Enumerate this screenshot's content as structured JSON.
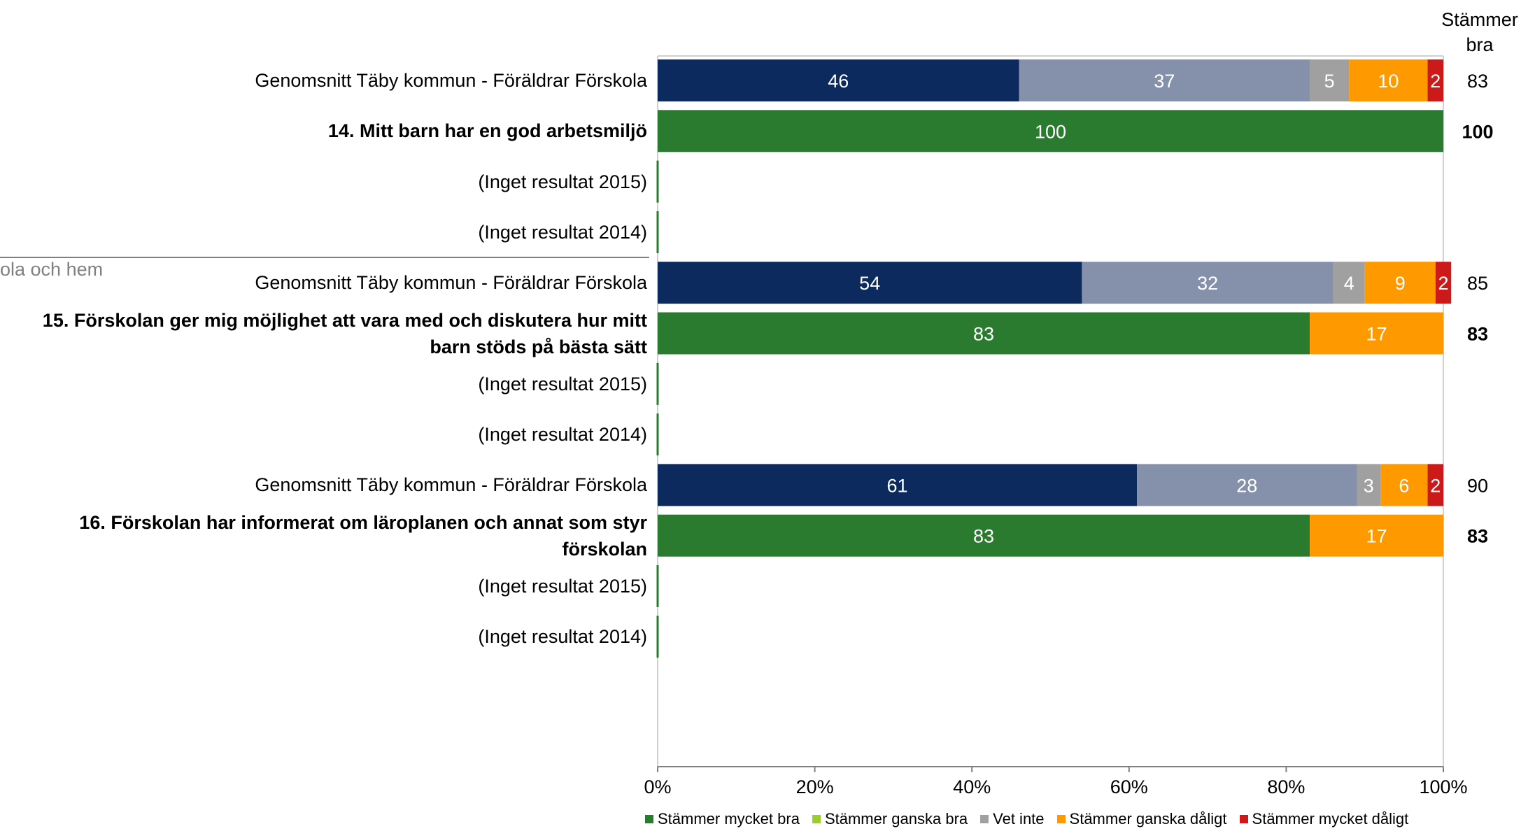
{
  "chart_data": {
    "type": "bar",
    "orientation": "horizontal-stacked-percent",
    "xlim": [
      0,
      100
    ],
    "x_ticks": [
      "0%",
      "20%",
      "40%",
      "60%",
      "80%",
      "100%"
    ],
    "right_column_header": "Stämmer bra",
    "section_label": "ola och hem",
    "legend": [
      {
        "name": "Stämmer mycket bra",
        "color": "#2a7a2f"
      },
      {
        "name": "Stämmer ganska bra",
        "color": "#9acd32"
      },
      {
        "name": "Vet inte",
        "color": "#a0a0a0"
      },
      {
        "name": "Stämmer ganska dåligt",
        "color": "#ff9900"
      },
      {
        "name": "Stämmer mycket dåligt",
        "color": "#cc1a1a"
      }
    ],
    "rows": [
      {
        "label": "Genomsnitt Täby kommun - Föräldrar Förskola",
        "bold": false,
        "kind": "avg",
        "segments": [
          {
            "value": 46,
            "label": "46",
            "color": "#0d2a5e"
          },
          {
            "value": 37,
            "label": "37",
            "color": "#8590aa"
          },
          {
            "value": 5,
            "label": "5",
            "color": "#a0a0a0"
          },
          {
            "value": 10,
            "label": "10",
            "color": "#ff9900"
          },
          {
            "value": 2,
            "label": "2",
            "color": "#cc1a1a"
          }
        ],
        "right_value": "83"
      },
      {
        "label": "14. Mitt barn har en god arbetsmiljö",
        "bold": true,
        "kind": "school",
        "segments": [
          {
            "value": 100,
            "label": "100",
            "color": "#2a7a2f"
          },
          {
            "value": 0,
            "label": "0",
            "color": "#9acd32"
          }
        ],
        "right_value": "100"
      },
      {
        "label": "(Inget resultat 2015)",
        "bold": false,
        "kind": "empty",
        "segments": [],
        "right_value": ""
      },
      {
        "label": "(Inget resultat 2014)",
        "bold": false,
        "kind": "empty",
        "segments": [],
        "right_value": ""
      },
      {
        "label": "Genomsnitt Täby kommun - Föräldrar Förskola",
        "bold": false,
        "kind": "avg",
        "segments": [
          {
            "value": 54,
            "label": "54",
            "color": "#0d2a5e"
          },
          {
            "value": 32,
            "label": "32",
            "color": "#8590aa"
          },
          {
            "value": 4,
            "label": "4",
            "color": "#a0a0a0"
          },
          {
            "value": 9,
            "label": "9",
            "color": "#ff9900"
          },
          {
            "value": 2,
            "label": "2",
            "color": "#cc1a1a"
          }
        ],
        "right_value": "85"
      },
      {
        "label": "15. Förskolan ger mig möjlighet att vara med och diskutera hur mitt",
        "label2": "barn stöds på bästa sätt",
        "bold": true,
        "kind": "school",
        "segments": [
          {
            "value": 83,
            "label": "83",
            "color": "#2a7a2f"
          },
          {
            "value": 0,
            "label": "0",
            "color": "#9acd32"
          },
          {
            "value": 17,
            "label": "17",
            "color": "#ff9900"
          },
          {
            "value": 0,
            "label": "0",
            "color": "#cc1a1a"
          }
        ],
        "right_value": "83"
      },
      {
        "label": "(Inget resultat 2015)",
        "bold": false,
        "kind": "empty",
        "segments": [],
        "right_value": ""
      },
      {
        "label": "(Inget resultat 2014)",
        "bold": false,
        "kind": "empty",
        "segments": [],
        "right_value": ""
      },
      {
        "label": "Genomsnitt Täby kommun - Föräldrar Förskola",
        "bold": false,
        "kind": "avg",
        "segments": [
          {
            "value": 61,
            "label": "61",
            "color": "#0d2a5e"
          },
          {
            "value": 28,
            "label": "28",
            "color": "#8590aa"
          },
          {
            "value": 3,
            "label": "3",
            "color": "#a0a0a0"
          },
          {
            "value": 6,
            "label": "6",
            "color": "#ff9900"
          },
          {
            "value": 2,
            "label": "2",
            "color": "#cc1a1a"
          }
        ],
        "right_value": "90"
      },
      {
        "label": "16. Förskolan har informerat om läroplanen och annat som styr",
        "label2": "förskolan",
        "bold": true,
        "kind": "school",
        "segments": [
          {
            "value": 83,
            "label": "83",
            "color": "#2a7a2f"
          },
          {
            "value": 0,
            "label": "0",
            "color": "#9acd32"
          },
          {
            "value": 17,
            "label": "17",
            "color": "#ff9900"
          },
          {
            "value": 0,
            "label": "0",
            "color": "#cc1a1a"
          }
        ],
        "right_value": "83"
      },
      {
        "label": "(Inget resultat 2015)",
        "bold": false,
        "kind": "empty",
        "segments": [],
        "right_value": ""
      },
      {
        "label": "(Inget resultat 2014)",
        "bold": false,
        "kind": "empty",
        "segments": [],
        "right_value": ""
      }
    ]
  }
}
